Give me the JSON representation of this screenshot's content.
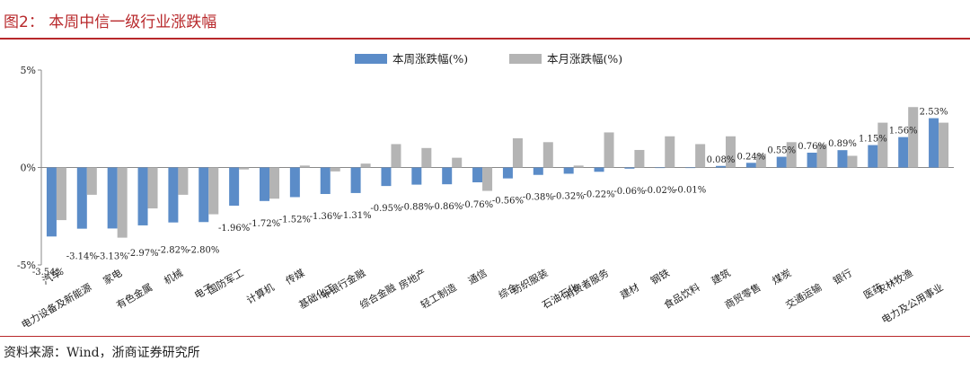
{
  "header": {
    "title": "图2：  本周中信一级行业涨跌幅"
  },
  "footer": {
    "source": "资料来源：Wind，浙商证券研究所"
  },
  "colors": {
    "accent": "#b8282b",
    "series_week": "#5b8cc8",
    "series_month": "#b4b4b4"
  },
  "chart_data": {
    "type": "bar",
    "title": "",
    "xlabel": "",
    "ylabel": "",
    "ylim": [
      -5,
      5
    ],
    "yticks": [
      "-5%",
      "0%",
      "5%"
    ],
    "legend_position": "top-center",
    "grid": false,
    "categories": [
      "汽车",
      "电力设备及新能源",
      "家电",
      "有色金属",
      "机械",
      "电子",
      "国防军工",
      "计算机",
      "传媒",
      "基础化工",
      "非银行金融",
      "综合金融",
      "房地产",
      "轻工制造",
      "通信",
      "综合",
      "纺织服装",
      "石油石化",
      "消费者服务",
      "建材",
      "钢铁",
      "食品饮料",
      "建筑",
      "商贸零售",
      "煤炭",
      "交通运输",
      "银行",
      "医药",
      "农林牧渔",
      "电力及公用事业"
    ],
    "series": [
      {
        "name": "本周涨跌幅(%)",
        "values": [
          -3.54,
          -3.14,
          -3.13,
          -2.97,
          -2.82,
          -2.8,
          -1.96,
          -1.72,
          -1.52,
          -1.36,
          -1.31,
          -0.95,
          -0.88,
          -0.86,
          -0.76,
          -0.56,
          -0.38,
          -0.32,
          -0.22,
          -0.06,
          -0.02,
          -0.01,
          0.08,
          0.24,
          0.55,
          0.76,
          0.89,
          1.15,
          1.56,
          2.53
        ],
        "labels": [
          "-3.54%",
          "-3.14%",
          "-3.13%",
          "-2.97%",
          "-2.82%",
          "-2.80%",
          "-1.96%",
          "-1.72%",
          "-1.52%",
          "-1.36%",
          "-1.31%",
          "-0.95%",
          "-0.88%",
          "-0.86%",
          "-0.76%",
          "-0.56%",
          "-0.38%",
          "-0.32%",
          "-0.22%",
          "-0.06%",
          "-0.02%",
          "-0.01%",
          "0.08%",
          "0.24%",
          "0.55%",
          "0.76%",
          "0.89%",
          "1.15%",
          "1.56%",
          "2.53%"
        ]
      },
      {
        "name": "本月涨跌幅(%)",
        "values": [
          -2.7,
          -1.4,
          -3.6,
          -2.1,
          -1.4,
          -2.4,
          -0.1,
          -1.6,
          0.1,
          -0.2,
          0.2,
          1.2,
          1.0,
          0.5,
          -1.2,
          1.5,
          1.3,
          0.1,
          1.8,
          0.9,
          1.6,
          1.2,
          1.6,
          0.7,
          1.3,
          1.2,
          0.6,
          2.3,
          3.1,
          2.3
        ]
      }
    ]
  }
}
